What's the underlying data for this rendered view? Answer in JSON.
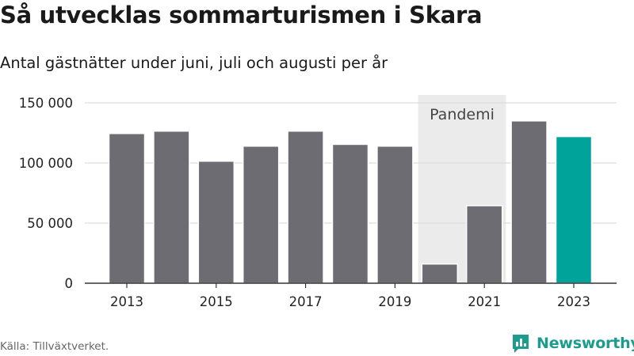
{
  "header": {
    "title": "Så utvecklas sommarturismen i Skara",
    "subtitle": "Antal gästnätter under juni, juli och augusti per år"
  },
  "footer": {
    "source": "Källa: Tillväxtverket.",
    "brand": "Newsworthy"
  },
  "colors": {
    "bar": "#6d6c72",
    "highlight": "#00a39a",
    "pandemic_band": "#ebebeb",
    "grid": "#dddddd",
    "axis": "#333333",
    "brand": "#1b9c8c"
  },
  "chart_data": {
    "type": "bar",
    "categories": [
      "2013",
      "2014",
      "2015",
      "2016",
      "2017",
      "2018",
      "2019",
      "2020",
      "2021",
      "2022",
      "2023"
    ],
    "values": [
      124500,
      126500,
      101500,
      114000,
      126500,
      115500,
      114000,
      16000,
      64500,
      135000,
      122000
    ],
    "highlight_category": "2023",
    "x_tick_labels": [
      "2013",
      "2015",
      "2017",
      "2019",
      "2021",
      "2023"
    ],
    "y_ticks": [
      0,
      50000,
      100000,
      150000
    ],
    "y_tick_labels": [
      "0",
      "50 000",
      "100 000",
      "150 000"
    ],
    "ylim": [
      0,
      150000
    ],
    "grid": true,
    "annotation": {
      "label": "Pandemi",
      "from": "2020",
      "to": "2021"
    }
  }
}
